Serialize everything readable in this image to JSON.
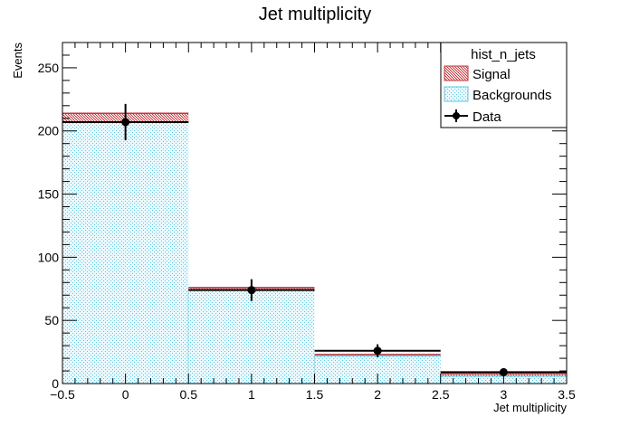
{
  "chart_data": {
    "type": "bar",
    "title": "Jet multiplicity",
    "xlabel": "Jet multiplicity",
    "ylabel": "Events",
    "xlim": [
      -0.5,
      3.5
    ],
    "ylim": [
      0,
      270
    ],
    "x_ticks": [
      -0.5,
      0,
      0.5,
      1,
      1.5,
      2,
      2.5,
      3,
      3.5
    ],
    "x_tick_labels": [
      "−0.5",
      "0",
      "0.5",
      "1",
      "1.5",
      "2",
      "2.5",
      "3",
      "3.5"
    ],
    "y_ticks": [
      0,
      50,
      100,
      150,
      200,
      250
    ],
    "y_tick_labels": [
      "0",
      "50",
      "100",
      "150",
      "200",
      "250"
    ],
    "bins": [
      {
        "low": -0.5,
        "high": 0.5,
        "center": 0
      },
      {
        "low": 0.5,
        "high": 1.5,
        "center": 1
      },
      {
        "low": 1.5,
        "high": 2.5,
        "center": 2
      },
      {
        "low": 2.5,
        "high": 3.5,
        "center": 3
      }
    ],
    "stacked": true,
    "series": [
      {
        "name": "Backgrounds",
        "kind": "stacked-hist",
        "values": [
          207,
          74,
          22,
          6
        ],
        "color": "#5bc8e0",
        "fill": "#e4f5fa"
      },
      {
        "name": "Signal",
        "kind": "stacked-hist",
        "values": [
          7,
          2,
          1,
          2
        ],
        "color": "#c0363c",
        "fill": "#f2c9cb"
      },
      {
        "name": "Data",
        "kind": "points",
        "values": [
          207,
          74,
          26,
          9
        ],
        "errors": [
          14.4,
          8.6,
          5.1,
          3.0
        ],
        "color": "#000000"
      }
    ],
    "legend": {
      "title": "hist_n_jets",
      "position": "top-right",
      "entries": [
        "Signal",
        "Backgrounds",
        "Data"
      ]
    },
    "grid": false
  }
}
